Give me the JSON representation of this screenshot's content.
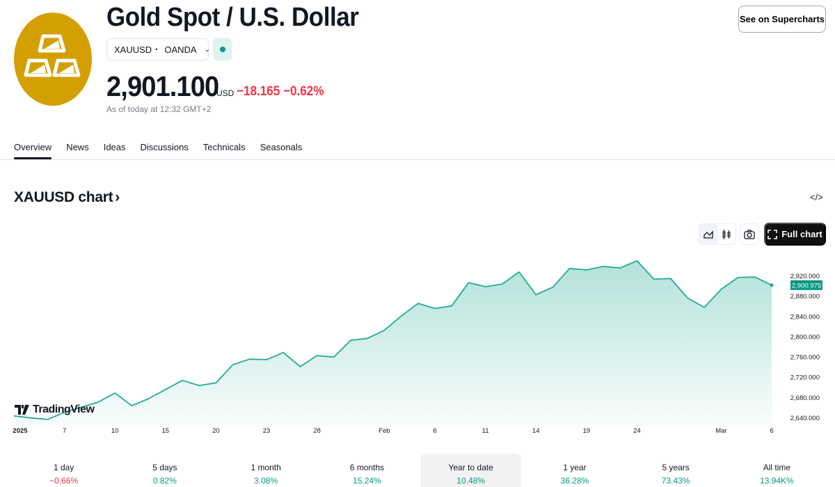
{
  "header": {
    "title": "Gold Spot / U.S. Dollar",
    "symbol": "XAUUSD",
    "separator": "•",
    "exchange": "OANDA",
    "price": "2,901.100",
    "currency": "USD",
    "change": "−18.165",
    "change_percent": "−0.62%",
    "as_of": "As of today at 12:32 GMT+2",
    "market_status": "open",
    "supercharts_label": "See on Supercharts",
    "logo_color": "#D49F00"
  },
  "tabs": [
    {
      "label": "Overview",
      "active": true
    },
    {
      "label": "News"
    },
    {
      "label": "Ideas"
    },
    {
      "label": "Discussions"
    },
    {
      "label": "Technicals"
    },
    {
      "label": "Seasonals"
    }
  ],
  "chart_section": {
    "title": "XAUUSD chart",
    "title_chevron": "›",
    "embed_icon": "</>",
    "full_chart_label": "Full chart",
    "watermark": "TradingView"
  },
  "chart_data": {
    "type": "area",
    "line_color": "#22AB94",
    "last_value_label": "2,900.975",
    "last_value_color": "#089981",
    "ylim": [
      2620,
      2960
    ],
    "y_ticks": [
      2640,
      2680,
      2720,
      2760,
      2800,
      2840,
      2880,
      2920
    ],
    "y_tick_labels": [
      "2,640.000",
      "2,680.000",
      "2,720.000",
      "2,760.000",
      "2,800.000",
      "2,840.000",
      "2,880.000",
      "2,920.000"
    ],
    "x_tick_labels": [
      {
        "date": "2025-01-02",
        "label": "2025"
      },
      {
        "date": "2025-01-07",
        "label": "7"
      },
      {
        "date": "2025-01-10",
        "label": "10"
      },
      {
        "date": "2025-01-15",
        "label": "15"
      },
      {
        "date": "2025-01-20",
        "label": "20"
      },
      {
        "date": "2025-01-23",
        "label": "23"
      },
      {
        "date": "2025-01-28",
        "label": "28"
      },
      {
        "date": "2025-02-03",
        "label": "Feb"
      },
      {
        "date": "2025-02-06",
        "label": "6"
      },
      {
        "date": "2025-02-11",
        "label": "11"
      },
      {
        "date": "2025-02-14",
        "label": "14"
      },
      {
        "date": "2025-02-19",
        "label": "19"
      },
      {
        "date": "2025-02-24",
        "label": "24"
      },
      {
        "date": "2025-03-03",
        "label": "Mar"
      },
      {
        "date": "2025-03-06",
        "label": "6"
      }
    ],
    "x": [
      "2025-01-02",
      "2025-01-03",
      "2025-01-06",
      "2025-01-07",
      "2025-01-08",
      "2025-01-09",
      "2025-01-10",
      "2025-01-13",
      "2025-01-14",
      "2025-01-15",
      "2025-01-16",
      "2025-01-17",
      "2025-01-20",
      "2025-01-21",
      "2025-01-22",
      "2025-01-23",
      "2025-01-24",
      "2025-01-27",
      "2025-01-28",
      "2025-01-29",
      "2025-01-30",
      "2025-01-31",
      "2025-02-03",
      "2025-02-04",
      "2025-02-05",
      "2025-02-06",
      "2025-02-07",
      "2025-02-10",
      "2025-02-11",
      "2025-02-12",
      "2025-02-13",
      "2025-02-14",
      "2025-02-17",
      "2025-02-18",
      "2025-02-19",
      "2025-02-20",
      "2025-02-21",
      "2025-02-24",
      "2025-02-25",
      "2025-02-26",
      "2025-02-27",
      "2025-02-28",
      "2025-03-03",
      "2025-03-04",
      "2025-03-05",
      "2025-03-06"
    ],
    "values": [
      2643,
      2639,
      2636,
      2650,
      2660,
      2670,
      2688,
      2663,
      2677,
      2695,
      2713,
      2703,
      2708,
      2744,
      2755,
      2754,
      2768,
      2740,
      2762,
      2759,
      2792,
      2796,
      2812,
      2840,
      2865,
      2855,
      2860,
      2906,
      2898,
      2903,
      2927,
      2882,
      2897,
      2934,
      2931,
      2938,
      2935,
      2949,
      2913,
      2914,
      2876,
      2857,
      2893,
      2916,
      2917,
      2901
    ]
  },
  "periods": [
    {
      "label": "1 day",
      "value": "−0.66%",
      "direction": "down"
    },
    {
      "label": "5 days",
      "value": "0.82%",
      "direction": "up"
    },
    {
      "label": "1 month",
      "value": "3.08%",
      "direction": "up"
    },
    {
      "label": "6 months",
      "value": "15.24%",
      "direction": "up"
    },
    {
      "label": "Year to date",
      "value": "10.48%",
      "direction": "up",
      "selected": true
    },
    {
      "label": "1 year",
      "value": "36.28%",
      "direction": "up"
    },
    {
      "label": "5 years",
      "value": "73.43%",
      "direction": "up"
    },
    {
      "label": "All time",
      "value": "13.94K%",
      "direction": "up"
    }
  ],
  "colors": {
    "up": "#089981",
    "down": "#F23645"
  }
}
